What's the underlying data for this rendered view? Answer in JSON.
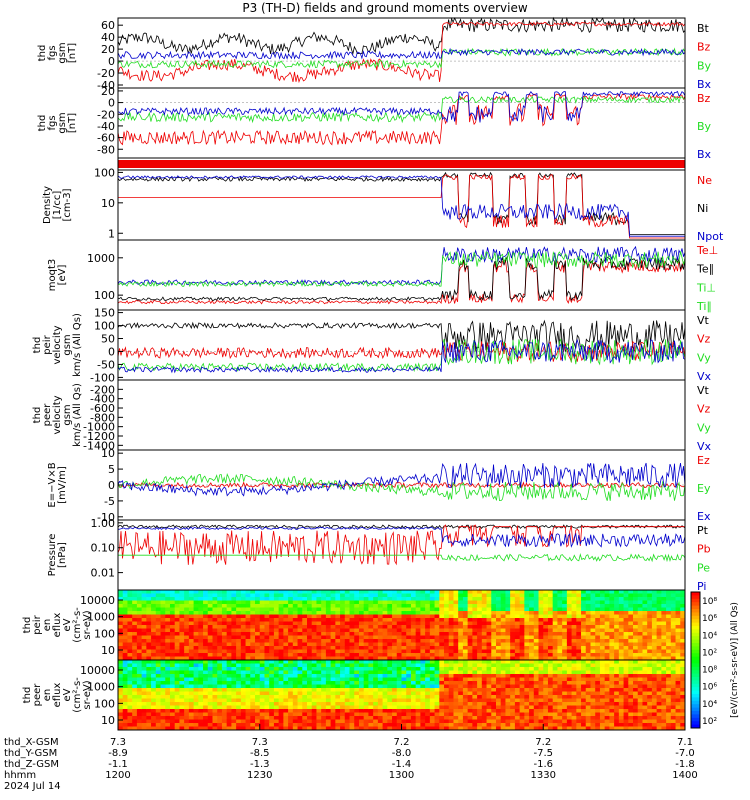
{
  "chart_data": {
    "type": "line",
    "title": "P3 (TH-D) fields and ground moments overview",
    "panels": [
      {
        "ylabel": [
          "thd",
          "fgs",
          "gsm",
          "[nT]"
        ],
        "ticks": [
          60,
          40,
          20,
          0,
          -20,
          -40
        ],
        "legend": [
          "Bt",
          "Bz",
          "By",
          "Bx"
        ],
        "kind": "line",
        "ylim": [
          -45,
          72
        ]
      },
      {
        "ylabel": [
          "thd",
          "fgs",
          "gsm",
          "[nT]"
        ],
        "ticks": [
          20,
          0,
          -20,
          -40,
          -60,
          -80
        ],
        "legend": [
          "Bz",
          "By",
          "Bx"
        ],
        "kind": "line",
        "ylim": [
          -95,
          25
        ]
      },
      {
        "ylabel": [],
        "ticks": [],
        "legend": [],
        "kind": "bar",
        "ylim": [
          0,
          1
        ]
      },
      {
        "ylabel": [
          "Density",
          "[1/cc]",
          "[cm-3]"
        ],
        "ticks": [
          "100",
          "10",
          "1"
        ],
        "legend": [
          "Ne",
          "Ni",
          "Npot"
        ],
        "kind": "line",
        "log": true,
        "ylim": [
          0.6,
          120
        ]
      },
      {
        "ylabel": [
          "moqt3",
          "[eV]"
        ],
        "ticks": [
          "1000",
          "100"
        ],
        "legend": [
          "Te⊥",
          "Te∥",
          "Ti⊥",
          "Ti∥"
        ],
        "kind": "line",
        "log": true,
        "ylim": [
          40,
          3000
        ]
      },
      {
        "ylabel": [
          "thd",
          "peir",
          "velocity",
          "gsm",
          "km/s (All Qs)"
        ],
        "ticks": [
          150,
          100,
          50,
          0,
          -50,
          -100
        ],
        "legend": [
          "Vt",
          "Vz",
          "Vy",
          "Vx"
        ],
        "kind": "line",
        "ylim": [
          -110,
          160
        ]
      },
      {
        "ylabel": [
          "thd",
          "peer",
          "velocity",
          "gsm",
          "km/s (All Qs)"
        ],
        "ticks": [
          -200,
          -400,
          -600,
          -800,
          -1000,
          -1200,
          -1400
        ],
        "legend": [
          "Vt",
          "Vz",
          "Vy",
          "Vx"
        ],
        "kind": "empty",
        "ylim": [
          -1500,
          0
        ]
      },
      {
        "ylabel": [
          "E=−V×B",
          "[mV/m]"
        ],
        "ticks": [
          10,
          5,
          0,
          -5,
          -10
        ],
        "legend": [
          "Ez",
          "Ey",
          "Ex"
        ],
        "kind": "line",
        "ylim": [
          -11,
          11
        ]
      },
      {
        "ylabel": [
          "Pressure",
          "[nPa]"
        ],
        "ticks": [
          "1.00",
          "0.10",
          "0.01"
        ],
        "legend": [
          "Pt",
          "Pb",
          "Pe",
          "Pi"
        ],
        "kind": "line",
        "log": true,
        "ylim": [
          0.002,
          1.3
        ]
      },
      {
        "ylabel": [
          "thd",
          "peir",
          "en",
          "eflux",
          "eV",
          "(cm²-s-",
          "sr-eV)"
        ],
        "ticks": [
          "10000",
          "1000",
          "100",
          "10"
        ],
        "legend": [],
        "kind": "spectrogram"
      },
      {
        "ylabel": [
          "thd",
          "peer",
          "en",
          "eflux",
          "eV",
          "(cm²-s-",
          "sr-eV)"
        ],
        "ticks": [
          "10000",
          "1000",
          "100",
          "10"
        ],
        "legend": [],
        "kind": "spectrogram"
      }
    ],
    "colorbar": {
      "label": "[eV/(cm²-s-sr-eV)] (All Qs)",
      "ticks": [
        "10⁸",
        "10⁶",
        "10⁴",
        "10²",
        "10⁸",
        "10⁶",
        "10⁴",
        "10²"
      ]
    },
    "x_axis": {
      "rows": [
        {
          "label": "thd_X-GSM",
          "values": [
            "7.3",
            "7.3",
            "7.2",
            "7.2",
            "7.1"
          ]
        },
        {
          "label": "thd_Y-GSM",
          "values": [
            "-8.9",
            "-8.5",
            "-8.0",
            "-7.5",
            "-7.0"
          ]
        },
        {
          "label": "thd_Z-GSM",
          "values": [
            "-1.1",
            "-1.3",
            "-1.4",
            "-1.6",
            "-1.8"
          ]
        },
        {
          "label": "hhmm",
          "values": [
            "1200",
            "1230",
            "1300",
            "1330",
            "1400"
          ]
        }
      ],
      "date": "2024 Jul 14",
      "xlim": [
        "12:00",
        "14:00"
      ]
    },
    "colors": {
      "black": "#000000",
      "red": "#ee0000",
      "green": "#22dd22",
      "blue": "#0000cc"
    }
  }
}
